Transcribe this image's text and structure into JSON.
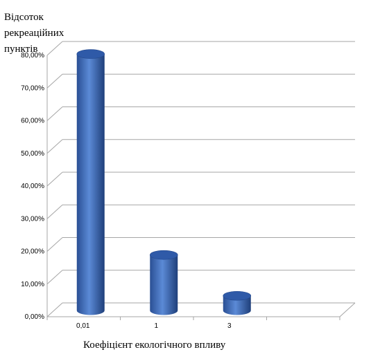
{
  "chart_data": {
    "type": "bar",
    "ylabel_lines": [
      "Відсоток",
      "рекреаційних",
      "пунктів"
    ],
    "xlabel": "Коефіцієнт екологічного впливу",
    "categories": [
      "0,01",
      "1",
      "3",
      ""
    ],
    "values": [
      0.785,
      0.17,
      0.045,
      null
    ],
    "ylim": [
      0,
      0.8
    ],
    "yticks": [
      0,
      0.1,
      0.2,
      0.3,
      0.4,
      0.5,
      0.6,
      0.7,
      0.8
    ],
    "ytick_labels": [
      "0,00%",
      "10,00%",
      "20,00%",
      "30,00%",
      "40,00%",
      "50,00%",
      "60,00%",
      "70,00%",
      "80,00%"
    ],
    "grid": true,
    "bar_color": "#3f6fbf",
    "grid_color": "#a6a6a6"
  }
}
